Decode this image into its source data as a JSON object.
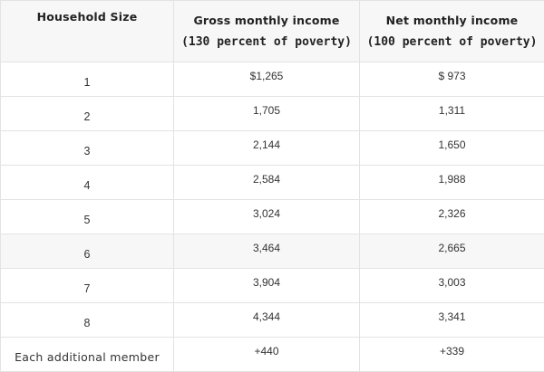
{
  "table": {
    "headers": [
      {
        "line1": "Household Size",
        "line2": ""
      },
      {
        "line1": "Gross monthly income",
        "line2": "(130 percent of poverty)"
      },
      {
        "line1": "Net monthly income",
        "line2": "(100 percent of poverty)"
      }
    ],
    "rows": [
      {
        "size": "1",
        "gross": "$1,265",
        "net": "$ 973"
      },
      {
        "size": "2",
        "gross": "1,705",
        "net": "1,311"
      },
      {
        "size": "3",
        "gross": "2,144",
        "net": "1,650"
      },
      {
        "size": "4",
        "gross": "2,584",
        "net": "1,988"
      },
      {
        "size": "5",
        "gross": "3,024",
        "net": "2,326"
      },
      {
        "size": "6",
        "gross": "3,464",
        "net": "2,665"
      },
      {
        "size": "7",
        "gross": "3,904",
        "net": "3,003"
      },
      {
        "size": "8",
        "gross": "4,344",
        "net": "3,341"
      },
      {
        "size": "Each additional member",
        "gross": "+440",
        "net": "+339"
      }
    ],
    "colors": {
      "header_bg": "#f7f7f7",
      "shaded_row_bg": "#f7f7f7",
      "border": "#e3e3e3"
    }
  }
}
